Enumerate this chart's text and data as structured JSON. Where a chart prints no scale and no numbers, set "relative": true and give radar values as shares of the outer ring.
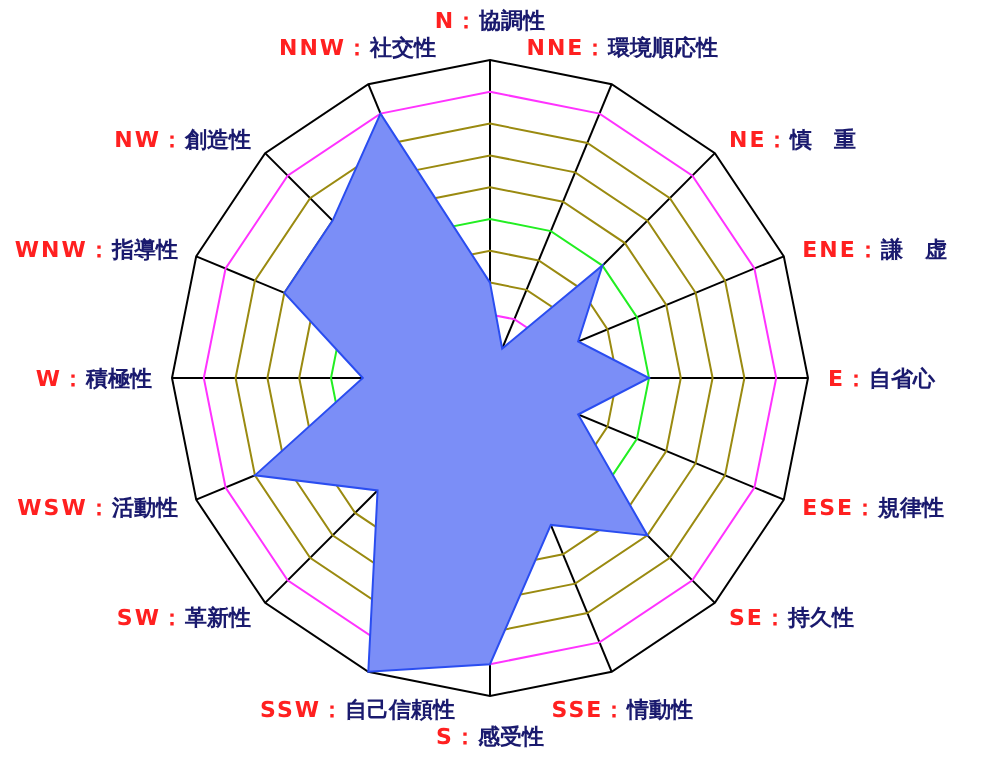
{
  "chart_data": {
    "type": "radar",
    "relative": true,
    "grid": true,
    "categories": [
      "N：協調性",
      "NNE：環境順応性",
      "NE：慎　重",
      "ENE：謙　虚",
      "E：自省心",
      "ESE：規律性",
      "SE：持久性",
      "SSE：情動性",
      "S：感受性",
      "SSW：自己信頼性",
      "SW：革新性",
      "WSW：活動性",
      "W：積極性",
      "WNW：指導性",
      "NW：創造性",
      "NNW：社交性"
    ],
    "series": [
      {
        "color": "#7b8ef7",
        "values": [
          0.3,
          0.1,
          0.5,
          0.3,
          0.5,
          0.3,
          0.7,
          0.5,
          0.9,
          1.0,
          0.5,
          0.8,
          0.4,
          0.7,
          0.7,
          0.9
        ]
      }
    ]
  }
}
